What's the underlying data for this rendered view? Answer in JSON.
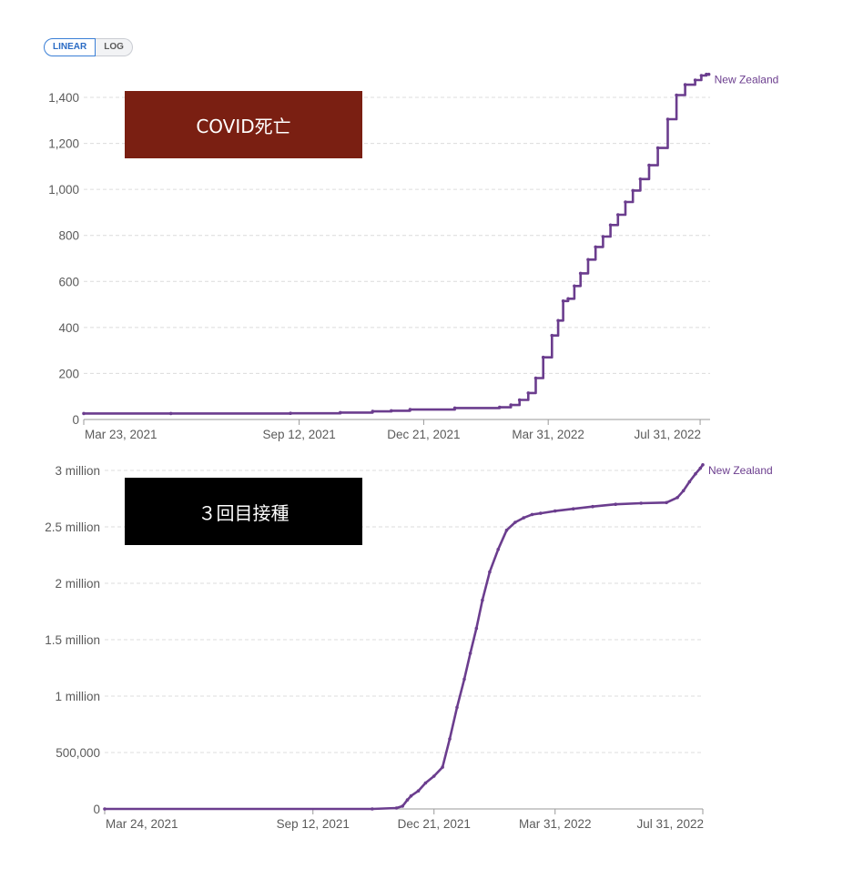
{
  "controls": {
    "linear_label": "LINEAR",
    "log_label": "LOG"
  },
  "overlays": {
    "deaths_label": "COVID死亡",
    "booster_label": "３回目接種"
  },
  "colors": {
    "series": "#6b3d8e",
    "deaths_box": "#7a1f12",
    "booster_box": "#000000",
    "active_toggle": "#3a7fd6"
  },
  "chart_data": [
    {
      "type": "line",
      "title": "",
      "xlabel": "",
      "ylabel": "",
      "xlim": [
        "2021-03-23",
        "2022-08-08"
      ],
      "ylim": [
        0,
        1400
      ],
      "y_ticks": [
        0,
        200,
        400,
        600,
        800,
        1000,
        1200,
        1400
      ],
      "y_tick_labels": [
        "0",
        "200",
        "400",
        "600",
        "800",
        "1,000",
        "1,200",
        "1,400"
      ],
      "x_ticks": [
        "2021-03-23",
        "2021-09-12",
        "2021-12-21",
        "2022-03-31",
        "2022-07-31"
      ],
      "x_tick_labels": [
        "Mar 23, 2021",
        "Sep 12, 2021",
        "Dec 21, 2021",
        "Mar 31, 2022",
        "Jul 31, 2022"
      ],
      "grid": true,
      "series": [
        {
          "name": "New Zealand",
          "step": true,
          "x": [
            "2021-03-23",
            "2021-06-01",
            "2021-09-05",
            "2021-10-15",
            "2021-11-10",
            "2021-11-25",
            "2021-12-10",
            "2022-01-15",
            "2022-02-20",
            "2022-03-01",
            "2022-03-08",
            "2022-03-15",
            "2022-03-21",
            "2022-03-27",
            "2022-04-03",
            "2022-04-08",
            "2022-04-12",
            "2022-04-16",
            "2022-04-21",
            "2022-04-26",
            "2022-05-02",
            "2022-05-08",
            "2022-05-14",
            "2022-05-20",
            "2022-05-26",
            "2022-06-01",
            "2022-06-07",
            "2022-06-13",
            "2022-06-20",
            "2022-06-27",
            "2022-07-05",
            "2022-07-12",
            "2022-07-19",
            "2022-07-27",
            "2022-08-01",
            "2022-08-05",
            "2022-08-07"
          ],
          "y": [
            26,
            26,
            27,
            30,
            35,
            38,
            43,
            50,
            53,
            63,
            85,
            115,
            180,
            270,
            365,
            430,
            515,
            525,
            580,
            635,
            695,
            750,
            795,
            845,
            890,
            945,
            995,
            1045,
            1105,
            1180,
            1305,
            1410,
            1455,
            1475,
            1495,
            1500,
            1500
          ]
        }
      ]
    },
    {
      "type": "line",
      "title": "",
      "xlabel": "",
      "ylabel": "",
      "xlim": [
        "2021-03-24",
        "2022-07-31"
      ],
      "ylim": [
        0,
        3000000
      ],
      "y_ticks": [
        0,
        500000,
        1000000,
        1500000,
        2000000,
        2500000,
        3000000
      ],
      "y_tick_labels": [
        "0",
        "500,000",
        "1 million",
        "1.5 million",
        "2 million",
        "2.5 million",
        "3 million"
      ],
      "x_ticks": [
        "2021-03-24",
        "2021-09-12",
        "2021-12-21",
        "2022-03-31",
        "2022-07-31"
      ],
      "x_tick_labels": [
        "Mar 24, 2021",
        "Sep 12, 2021",
        "Dec 21, 2021",
        "Mar 31, 2022",
        "Jul 31, 2022"
      ],
      "grid": true,
      "series": [
        {
          "name": "New Zealand",
          "x": [
            "2021-03-24",
            "2021-10-31",
            "2021-11-20",
            "2021-11-25",
            "2021-11-29",
            "2021-12-02",
            "2021-12-08",
            "2021-12-14",
            "2021-12-21",
            "2021-12-28",
            "2022-01-03",
            "2022-01-09",
            "2022-01-15",
            "2022-01-20",
            "2022-01-25",
            "2022-01-30",
            "2022-02-05",
            "2022-02-12",
            "2022-02-19",
            "2022-02-26",
            "2022-03-05",
            "2022-03-12",
            "2022-03-19",
            "2022-03-31",
            "2022-04-15",
            "2022-05-01",
            "2022-05-20",
            "2022-06-10",
            "2022-07-01",
            "2022-07-10",
            "2022-07-15",
            "2022-07-20",
            "2022-07-25",
            "2022-07-29",
            "2022-07-31"
          ],
          "y": [
            0,
            0,
            8000,
            25000,
            80000,
            115000,
            160000,
            230000,
            290000,
            370000,
            620000,
            900000,
            1150000,
            1380000,
            1600000,
            1850000,
            2100000,
            2300000,
            2470000,
            2540000,
            2580000,
            2610000,
            2620000,
            2640000,
            2660000,
            2680000,
            2700000,
            2710000,
            2715000,
            2760000,
            2820000,
            2900000,
            2970000,
            3020000,
            3050000
          ]
        }
      ]
    }
  ]
}
